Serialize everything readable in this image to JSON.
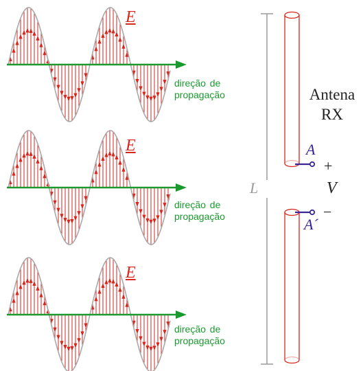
{
  "waves": [
    {
      "field_label": "E",
      "direction_label_line1": "direção  de",
      "direction_label_line2": "propagação"
    },
    {
      "field_label": "E",
      "direction_label_line1": "direção  de",
      "direction_label_line2": "propagação"
    },
    {
      "field_label": "E",
      "direction_label_line1": "direção  de",
      "direction_label_line2": "propagação"
    }
  ],
  "antenna": {
    "title_line1": "Antena",
    "title_line2": "RX",
    "terminal_top": "A",
    "terminal_bottom": "A´",
    "plus": "+",
    "minus": "−",
    "voltage": "V",
    "length": "L"
  },
  "colors": {
    "field_vectors": "#d8261c",
    "sine_curve": "#a9a9a9",
    "propagation_axis": "#1a9a2e",
    "antenna_conductor": "#d8261c",
    "terminal_leads": "#3a2596",
    "length_marker": "#9a9a9a"
  }
}
